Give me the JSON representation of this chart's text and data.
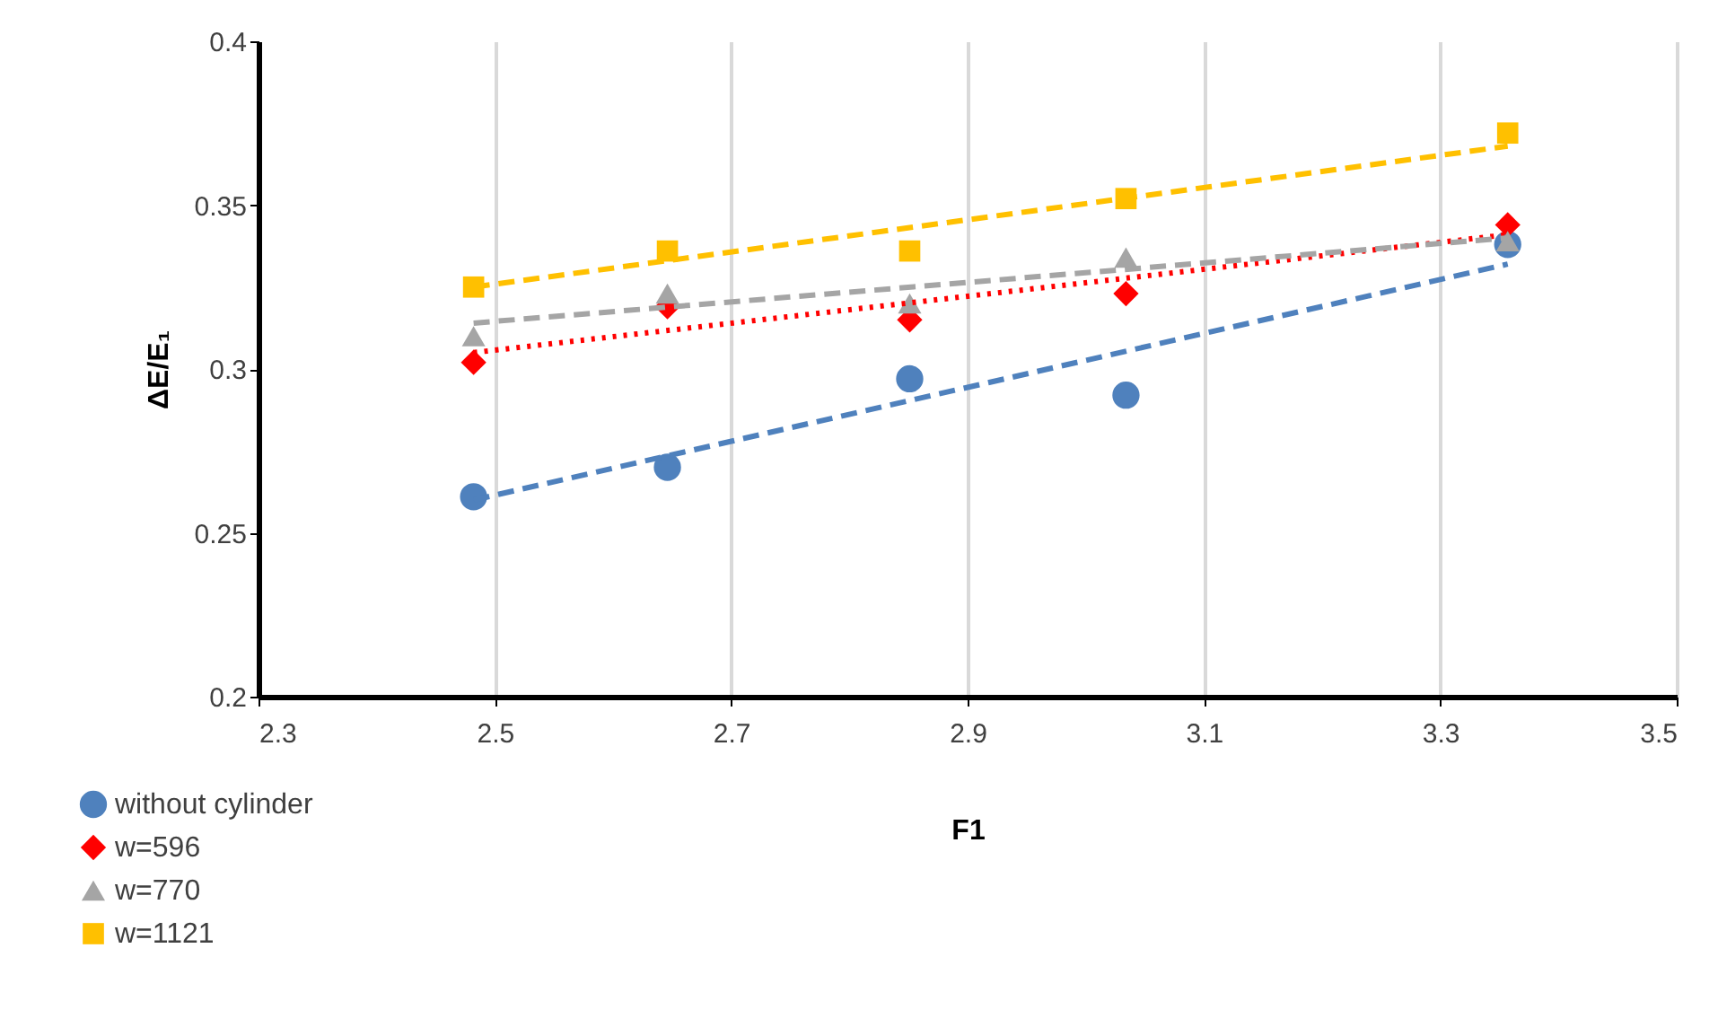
{
  "chart_data": {
    "type": "scatter",
    "xlabel": "F1",
    "ylabel": "ΔE/E₁",
    "xlim": [
      2.3,
      3.5
    ],
    "xticks": [
      2.3,
      2.5,
      2.7,
      2.9,
      3.1,
      3.3,
      3.5
    ],
    "ylim": [
      0.2,
      0.4
    ],
    "yticks": [
      0.2,
      0.25,
      0.3,
      0.35,
      0.4
    ],
    "grid": "x",
    "legend": "bottom left",
    "series": [
      {
        "name": "without cylinder",
        "color": "#4f81bd",
        "marker": "circle",
        "x": [
          2.482,
          2.646,
          2.851,
          3.034,
          3.357
        ],
        "values": [
          0.261,
          0.27,
          0.297,
          0.292,
          0.338
        ]
      },
      {
        "name": "w=596",
        "color": "#ff0000",
        "marker": "diamond",
        "x": [
          2.482,
          2.646,
          2.851,
          3.034,
          3.357
        ],
        "values": [
          0.302,
          0.319,
          0.315,
          0.323,
          0.344
        ]
      },
      {
        "name": "w=770",
        "color": "#a5a5a5",
        "marker": "triangle",
        "x": [
          2.482,
          2.646,
          2.851,
          3.034,
          3.357
        ],
        "values": [
          0.31,
          0.323,
          0.32,
          0.334,
          0.339
        ]
      },
      {
        "name": "w=1121",
        "color": "#ffc000",
        "marker": "square",
        "x": [
          2.482,
          2.646,
          2.851,
          3.034,
          3.357
        ],
        "values": [
          0.325,
          0.336,
          0.336,
          0.352,
          0.372
        ]
      },
      {
        "type": "line",
        "color": "#4f81bd",
        "line_style": "dashed",
        "x": [
          2.482,
          3.357
        ],
        "values": [
          0.26,
          0.332
        ]
      },
      {
        "type": "line",
        "color": "#ff0000",
        "line_style": "dotted",
        "x": [
          2.482,
          3.357
        ],
        "values": [
          0.305,
          0.341
        ]
      },
      {
        "type": "line",
        "color": "#a5a5a5",
        "line_style": "dashed",
        "x": [
          2.482,
          3.357
        ],
        "values": [
          0.314,
          0.34
        ]
      },
      {
        "type": "line",
        "color": "#ffc000",
        "line_style": "dashed",
        "x": [
          2.482,
          3.357
        ],
        "values": [
          0.325,
          0.368
        ]
      }
    ]
  }
}
